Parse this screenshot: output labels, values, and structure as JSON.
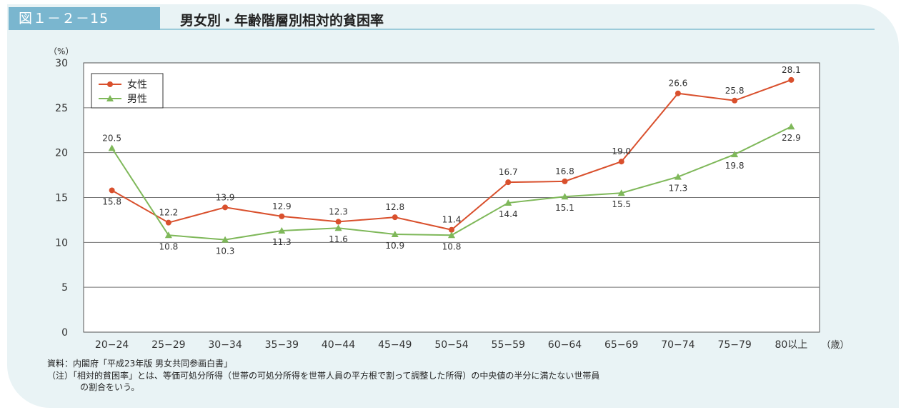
{
  "figure_number": "図１－２－15",
  "figure_title": "男女別・年齢階層別相対的貧困率",
  "source_note": "資料：内閣府「平成23年版 男女共同参画白書」",
  "footnote_line1": "（注）「相対的貧困率」とは、等価可処分所得（世帯の可処分所得を世帯人員の平方根で割って調整した所得）の中央値の半分に満たない世帯員",
  "footnote_line2": "の割合をいう。",
  "chart_data": {
    "type": "line",
    "ylabel": "（%）",
    "xunit": "（歳）",
    "ylim": [
      0,
      30
    ],
    "yticks": [
      0,
      5,
      10,
      15,
      20,
      25,
      30
    ],
    "grid": true,
    "legend": "top-left",
    "categories": [
      "20−24",
      "25−29",
      "30−34",
      "35−39",
      "40−44",
      "45−49",
      "50−54",
      "55−59",
      "60−64",
      "65−69",
      "70−74",
      "75−79",
      "80以上"
    ],
    "series": [
      {
        "name": "女性",
        "color": "#d9502d",
        "marker": "circle",
        "values": [
          15.8,
          12.2,
          13.9,
          12.9,
          12.3,
          12.8,
          11.4,
          16.7,
          16.8,
          19.0,
          26.6,
          25.8,
          28.1
        ],
        "labels": [
          "15.8",
          "12.2",
          "13.9",
          "12.9",
          "12.3",
          "12.8",
          "11.4",
          "16.7",
          "16.8",
          "19.0",
          "26.6",
          "25.8",
          "28.1"
        ]
      },
      {
        "name": "男性",
        "color": "#7fb85a",
        "marker": "triangle",
        "values": [
          20.5,
          10.8,
          10.3,
          11.3,
          11.6,
          10.9,
          10.8,
          14.4,
          15.1,
          15.5,
          17.3,
          19.8,
          22.9
        ],
        "labels": [
          "20.5",
          "10.8",
          "10.3",
          "11.3",
          "11.6",
          "10.9",
          "10.8",
          "14.4",
          "15.1",
          "15.5",
          "17.3",
          "19.8",
          "22.9"
        ]
      }
    ]
  }
}
